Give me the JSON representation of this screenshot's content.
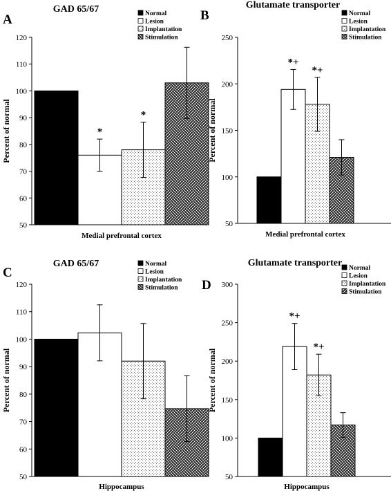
{
  "figure": {
    "panels": [
      {
        "letter": "A",
        "chart_data": {
          "type": "bar",
          "title": "GAD 65/67",
          "xlabel": "Medial prefrontal cortex",
          "ylabel": "Percent of normal",
          "ylim": [
            50,
            120
          ],
          "yticks": [
            50,
            60,
            70,
            80,
            90,
            100,
            110,
            120
          ],
          "grid": false,
          "legend": "top-right",
          "categories": [
            "Medial prefrontal cortex"
          ],
          "series": [
            {
              "name": "Normal",
              "values": [
                100
              ],
              "error": [
                0
              ],
              "annotation": ""
            },
            {
              "name": "Lesion",
              "values": [
                76
              ],
              "error": [
                6
              ],
              "annotation": "*"
            },
            {
              "name": "Implantation",
              "values": [
                78
              ],
              "error": [
                10.3
              ],
              "annotation": "*"
            },
            {
              "name": "Stimulation",
              "values": [
                103
              ],
              "error": [
                13.3
              ],
              "annotation": ""
            }
          ]
        }
      },
      {
        "letter": "B",
        "chart_data": {
          "type": "bar",
          "title": "Glutamate transporter",
          "xlabel": "Medial prefrontal cortex",
          "ylabel": "Percent of normal",
          "ylim": [
            50,
            250
          ],
          "yticks": [
            50,
            100,
            150,
            200,
            250
          ],
          "grid": false,
          "legend": "top-right",
          "categories": [
            "Medial prefrontal cortex"
          ],
          "series": [
            {
              "name": "Normal",
              "values": [
                100
              ],
              "error": [
                0
              ],
              "annotation": ""
            },
            {
              "name": "Lesion",
              "values": [
                194
              ],
              "error": [
                21.5
              ],
              "annotation": "*+"
            },
            {
              "name": "Implantation",
              "values": [
                178
              ],
              "error": [
                29
              ],
              "annotation": "*+"
            },
            {
              "name": "Stimulation",
              "values": [
                121
              ],
              "error": [
                19
              ],
              "annotation": ""
            }
          ]
        }
      },
      {
        "letter": "C",
        "chart_data": {
          "type": "bar",
          "title": "GAD 65/67",
          "xlabel": "Hippocampus",
          "ylabel": "Percent of normal",
          "ylim": [
            50,
            120
          ],
          "yticks": [
            50,
            60,
            70,
            80,
            90,
            100,
            110,
            120
          ],
          "grid": false,
          "legend": "top-right",
          "categories": [
            "Hippocampus"
          ],
          "series": [
            {
              "name": "Normal",
              "values": [
                100
              ],
              "error": [
                0
              ],
              "annotation": ""
            },
            {
              "name": "Lesion",
              "values": [
                102.3
              ],
              "error": [
                10.2
              ],
              "annotation": ""
            },
            {
              "name": "Implantation",
              "values": [
                92
              ],
              "error": [
                13.7
              ],
              "annotation": ""
            },
            {
              "name": "Stimulation",
              "values": [
                74.7
              ],
              "error": [
                12
              ],
              "annotation": ""
            }
          ]
        }
      },
      {
        "letter": "D",
        "chart_data": {
          "type": "bar",
          "title": "Glutamate transporter",
          "xlabel": "Hippocampus",
          "ylabel": "Percent of normal",
          "ylim": [
            50,
            300
          ],
          "yticks": [
            50,
            100,
            150,
            200,
            250,
            300
          ],
          "grid": false,
          "legend": "top-right",
          "categories": [
            "Hippocampus"
          ],
          "series": [
            {
              "name": "Normal",
              "values": [
                100
              ],
              "error": [
                0
              ],
              "annotation": ""
            },
            {
              "name": "Lesion",
              "values": [
                219
              ],
              "error": [
                30
              ],
              "annotation": "*+"
            },
            {
              "name": "Implantation",
              "values": [
                182
              ],
              "error": [
                27
              ],
              "annotation": "*+"
            },
            {
              "name": "Stimulation",
              "values": [
                117
              ],
              "error": [
                16
              ],
              "annotation": ""
            }
          ]
        }
      }
    ]
  }
}
